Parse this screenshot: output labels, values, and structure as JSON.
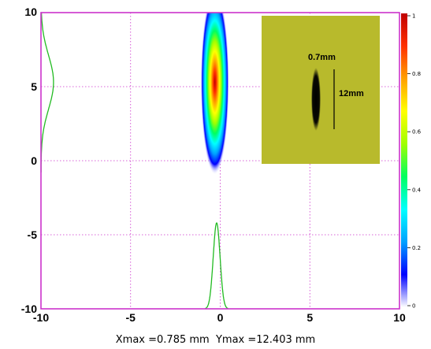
{
  "chart_data": {
    "type": "heatmap",
    "x_ticks": [
      "-10",
      "-5",
      "0",
      "5",
      "10"
    ],
    "y_ticks": [
      "10",
      "5",
      "0",
      "-5",
      "-10"
    ],
    "xlim": [
      -10,
      10
    ],
    "ylim": [
      -10,
      10
    ],
    "grid": true,
    "grid_style": "dotted",
    "spot": {
      "x_center": -0.3,
      "y_center": 5.3,
      "x_sigma": 0.33,
      "y_sigma": 2.6
    },
    "x_profile": {
      "baseline_y": -10,
      "peak_y": -4.2,
      "center_x": -0.2,
      "halfwidth": 0.4
    },
    "y_profile": {
      "baseline_x": -10,
      "peak_x": -9.3,
      "center_y": 5.3,
      "halfwidth": 3.8
    },
    "colorbar": {
      "ticks": [
        "1",
        "0.8",
        "0.6",
        "0.4",
        "0.2",
        "0"
      ],
      "stops": [
        "#ffffff",
        "#0000ff",
        "#00a0ff",
        "#00ffff",
        "#00ff60",
        "#a0ff00",
        "#ffff00",
        "#ffa000",
        "#ff3000",
        "#c00000"
      ]
    },
    "inset": {
      "width_label": "0.7mm",
      "height_label": "12mm",
      "background": "#b8ba2c",
      "spot_color": "#000000"
    },
    "frame_color": "#cc33cc",
    "profile_color": "#22bb22"
  },
  "readout": {
    "xmax_label": "Xmax =0.785 mm",
    "ymax_label": "Ymax =12.403 mm"
  }
}
